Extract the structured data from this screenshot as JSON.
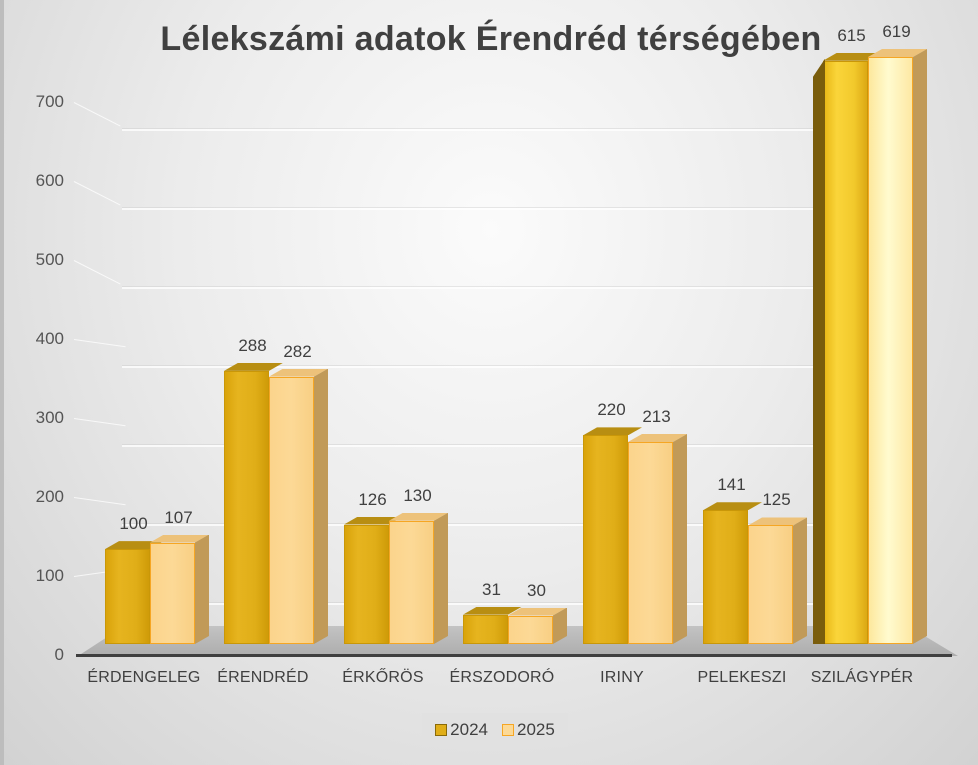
{
  "chart_data": {
    "type": "bar",
    "style": "3d-clustered-column",
    "title": "Lélekszámi adatok Érendréd térségében",
    "xlabel": "",
    "ylabel": "",
    "ylim": [
      0,
      700
    ],
    "y_ticks": [
      "0",
      "100",
      "200",
      "300",
      "400",
      "500",
      "600",
      "700"
    ],
    "grid": true,
    "legend_position": "bottom",
    "categories": [
      "ÉRDENGELEG",
      "ÉRENDRÉD",
      "ÉRKŐRÖS",
      "ÉRSZODORÓ",
      "IRINY",
      "PELEKESZI",
      "SZILÁGYPÉR"
    ],
    "series": [
      {
        "name": "2024",
        "color": "#E0AE18",
        "values": [
          100,
          288,
          126,
          31,
          220,
          141,
          615
        ]
      },
      {
        "name": "2025",
        "color": "#FCD996",
        "values": [
          107,
          282,
          130,
          30,
          213,
          125,
          619
        ]
      }
    ],
    "data_labels": {
      "2024": [
        "100",
        "288",
        "126",
        "31",
        "220",
        "141",
        "615"
      ],
      "2025": [
        "107",
        "282",
        "130",
        "30",
        "213",
        "125",
        "619"
      ]
    }
  },
  "legend": {
    "items": [
      {
        "label": "2024",
        "color": "#E0AE18",
        "border": "#B8860B"
      },
      {
        "label": "2025",
        "color": "#FCD996",
        "border": "#F6A623"
      }
    ]
  }
}
